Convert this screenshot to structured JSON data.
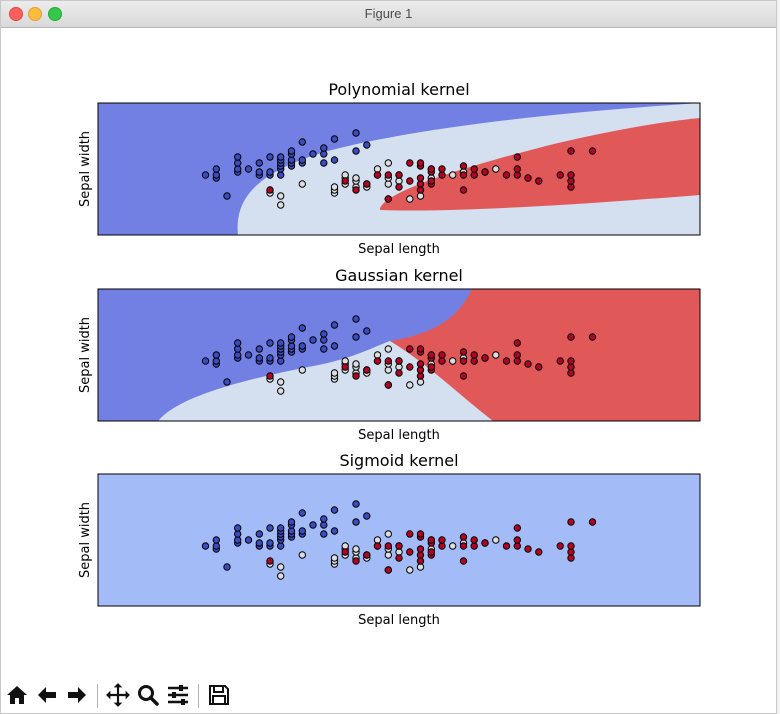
{
  "window": {
    "title": "Figure 1"
  },
  "toolbar": {
    "buttons": [
      {
        "name": "home-button",
        "icon": "home-icon"
      },
      {
        "name": "back-button",
        "icon": "arrow-left-icon"
      },
      {
        "name": "forward-button",
        "icon": "arrow-right-icon"
      },
      {
        "name": "pan-button",
        "icon": "move-icon"
      },
      {
        "name": "zoom-button",
        "icon": "magnifier-icon"
      },
      {
        "name": "configure-subplots-button",
        "icon": "sliders-icon"
      },
      {
        "name": "save-button",
        "icon": "floppy-disk-icon"
      }
    ]
  },
  "colors": {
    "class0_region": "#7380e3",
    "class1_region": "#d4dff0",
    "class2_region": "#e15859",
    "sigmoid_region": "#a3bcf8",
    "class0_point": "#3b4cc0",
    "class1_point": "#dcdde0",
    "class2_point": "#b40426"
  },
  "chart_data": [
    {
      "type": "scatter",
      "title": "Polynomial kernel",
      "xlabel": "Sepal length",
      "ylabel": "Sepal width",
      "xticks": "hidden",
      "yticks": "hidden",
      "xlim": [
        3.3,
        8.9
      ],
      "ylim": [
        1.0,
        5.4
      ],
      "background": "decision regions (3 classes)"
    },
    {
      "type": "scatter",
      "title": "Gaussian kernel",
      "xlabel": "Sepal length",
      "ylabel": "Sepal width",
      "xticks": "hidden",
      "yticks": "hidden",
      "xlim": [
        3.3,
        8.9
      ],
      "ylim": [
        1.0,
        5.4
      ],
      "background": "decision regions (3 classes)"
    },
    {
      "type": "scatter",
      "title": "Sigmoid kernel",
      "xlabel": "Sepal length",
      "ylabel": "Sepal width",
      "xticks": "hidden",
      "yticks": "hidden",
      "xlim": [
        3.3,
        8.9
      ],
      "ylim": [
        1.0,
        5.4
      ],
      "background": "single region"
    }
  ],
  "points": {
    "class0": [
      [
        4.3,
        3.0
      ],
      [
        4.4,
        2.9
      ],
      [
        4.4,
        3.0
      ],
      [
        4.4,
        3.2
      ],
      [
        4.5,
        2.3
      ],
      [
        4.6,
        3.1
      ],
      [
        4.6,
        3.2
      ],
      [
        4.6,
        3.4
      ],
      [
        4.6,
        3.6
      ],
      [
        4.7,
        3.2
      ],
      [
        4.8,
        3.0
      ],
      [
        4.8,
        3.1
      ],
      [
        4.8,
        3.4
      ],
      [
        4.9,
        3.0
      ],
      [
        4.9,
        3.1
      ],
      [
        4.9,
        3.6
      ],
      [
        5.0,
        3.0
      ],
      [
        5.0,
        3.2
      ],
      [
        5.0,
        3.3
      ],
      [
        5.0,
        3.4
      ],
      [
        5.0,
        3.5
      ],
      [
        5.0,
        3.6
      ],
      [
        5.1,
        3.3
      ],
      [
        5.1,
        3.4
      ],
      [
        5.1,
        3.5
      ],
      [
        5.1,
        3.7
      ],
      [
        5.1,
        3.8
      ],
      [
        5.2,
        3.4
      ],
      [
        5.2,
        3.5
      ],
      [
        5.2,
        4.1
      ],
      [
        5.3,
        3.7
      ],
      [
        5.4,
        3.4
      ],
      [
        5.4,
        3.7
      ],
      [
        5.4,
        3.9
      ],
      [
        5.5,
        3.5
      ],
      [
        5.5,
        4.2
      ],
      [
        5.7,
        3.8
      ],
      [
        5.7,
        4.4
      ],
      [
        5.8,
        4.0
      ]
    ],
    "class1": [
      [
        4.9,
        2.4
      ],
      [
        5.0,
        2.0
      ],
      [
        5.0,
        2.3
      ],
      [
        5.2,
        2.7
      ],
      [
        5.5,
        2.4
      ],
      [
        5.5,
        2.5
      ],
      [
        5.5,
        2.6
      ],
      [
        5.6,
        2.7
      ],
      [
        5.6,
        2.9
      ],
      [
        5.6,
        3.0
      ],
      [
        5.7,
        2.6
      ],
      [
        5.7,
        2.8
      ],
      [
        5.7,
        2.9
      ],
      [
        5.8,
        2.6
      ],
      [
        5.8,
        2.7
      ],
      [
        5.9,
        3.0
      ],
      [
        5.9,
        3.2
      ],
      [
        6.0,
        2.2
      ],
      [
        6.0,
        2.7
      ],
      [
        6.0,
        2.9
      ],
      [
        6.0,
        3.4
      ],
      [
        6.1,
        2.8
      ],
      [
        6.1,
        3.0
      ],
      [
        6.2,
        2.2
      ],
      [
        6.3,
        2.3
      ],
      [
        6.4,
        2.9
      ],
      [
        6.4,
        3.2
      ],
      [
        6.6,
        3.0
      ],
      [
        6.7,
        3.1
      ],
      [
        6.9,
        3.1
      ],
      [
        7.0,
        3.2
      ]
    ],
    "class2": [
      [
        4.9,
        2.5
      ],
      [
        5.6,
        2.8
      ],
      [
        5.7,
        2.5
      ],
      [
        5.8,
        2.7
      ],
      [
        5.9,
        3.0
      ],
      [
        6.0,
        2.2
      ],
      [
        6.0,
        3.0
      ],
      [
        6.1,
        2.6
      ],
      [
        6.1,
        3.0
      ],
      [
        6.2,
        2.8
      ],
      [
        6.2,
        3.4
      ],
      [
        6.3,
        2.5
      ],
      [
        6.3,
        2.7
      ],
      [
        6.3,
        2.9
      ],
      [
        6.3,
        3.3
      ],
      [
        6.3,
        3.4
      ],
      [
        6.4,
        2.7
      ],
      [
        6.4,
        2.8
      ],
      [
        6.4,
        3.1
      ],
      [
        6.4,
        3.2
      ],
      [
        6.5,
        3.0
      ],
      [
        6.5,
        3.2
      ],
      [
        6.7,
        2.5
      ],
      [
        6.7,
        3.0
      ],
      [
        6.7,
        3.3
      ],
      [
        6.8,
        3.0
      ],
      [
        6.8,
        3.2
      ],
      [
        6.9,
        3.1
      ],
      [
        7.1,
        3.0
      ],
      [
        7.2,
        3.0
      ],
      [
        7.2,
        3.2
      ],
      [
        7.2,
        3.6
      ],
      [
        7.3,
        2.9
      ],
      [
        7.4,
        2.8
      ],
      [
        7.6,
        3.0
      ],
      [
        7.7,
        2.6
      ],
      [
        7.7,
        2.8
      ],
      [
        7.7,
        3.0
      ],
      [
        7.7,
        3.8
      ],
      [
        7.9,
        3.8
      ]
    ]
  }
}
